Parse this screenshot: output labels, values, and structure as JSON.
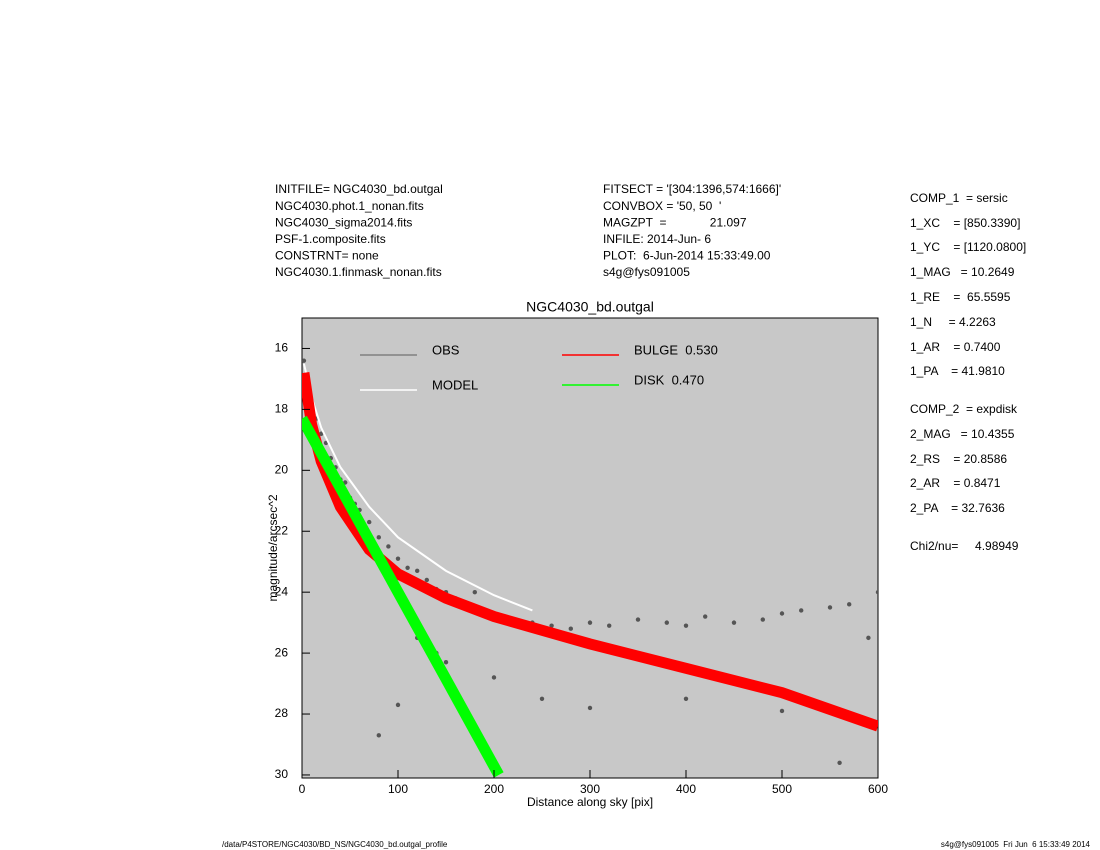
{
  "chart_data": {
    "type": "scatter",
    "title": "NGC4030_bd.outgal",
    "x_label": "Distance along sky [pix]",
    "y_label": "magnitude/arcsec^2",
    "xlim": [
      0,
      600
    ],
    "xticks": [
      0,
      100,
      200,
      300,
      400,
      500,
      600
    ],
    "ylim": [
      15,
      30.1
    ],
    "invert_y": true,
    "yticks": [
      16,
      18,
      20,
      22,
      24,
      26,
      28,
      30
    ],
    "background": "#c8c8c8",
    "series": [
      {
        "name": "OBS",
        "color": "#555555",
        "legend_color": "#808080",
        "mode": "points",
        "x": [
          2,
          5,
          8,
          12,
          15,
          20,
          25,
          30,
          35,
          40,
          45,
          50,
          55,
          60,
          70,
          80,
          90,
          100,
          110,
          120,
          130,
          140,
          150,
          160,
          180,
          200,
          220,
          240,
          260,
          280,
          300,
          320,
          350,
          380,
          400,
          420,
          450,
          480,
          500,
          520,
          550,
          570,
          590,
          600,
          120,
          150,
          200,
          250,
          300,
          400,
          500,
          560,
          80,
          100,
          140,
          180
        ],
        "values": [
          16.4,
          17.0,
          17.6,
          18.0,
          18.3,
          18.8,
          19.1,
          19.6,
          19.9,
          20.3,
          20.4,
          20.9,
          21.1,
          21.3,
          21.7,
          22.2,
          22.5,
          22.9,
          23.2,
          23.3,
          23.6,
          23.9,
          24.0,
          24.2,
          24.5,
          24.7,
          24.9,
          25.0,
          25.1,
          25.2,
          25.0,
          25.1,
          24.9,
          25.0,
          25.1,
          24.8,
          25.0,
          24.9,
          24.7,
          24.6,
          24.5,
          24.4,
          25.5,
          24.0,
          25.5,
          26.3,
          26.8,
          27.5,
          27.8,
          27.5,
          27.9,
          29.6,
          28.7,
          27.7,
          26.0,
          24.0
        ]
      },
      {
        "name": "MODEL",
        "color": "#ffffff",
        "mode": "line",
        "x": [
          2,
          10,
          20,
          40,
          70,
          100,
          150,
          200,
          240
        ],
        "values": [
          16.5,
          17.6,
          18.6,
          19.9,
          21.2,
          22.2,
          23.3,
          24.1,
          24.6
        ]
      },
      {
        "name": "BULGE  0.530",
        "color": "#ff0000",
        "mode": "band",
        "x": [
          2,
          10,
          20,
          40,
          70,
          100,
          150,
          200,
          300,
          400,
          500,
          600
        ],
        "values": [
          16.8,
          18.5,
          19.7,
          21.2,
          22.6,
          23.4,
          24.2,
          24.8,
          25.7,
          26.5,
          27.3,
          28.4
        ]
      },
      {
        "name": "DISK  0.470",
        "color": "#00ff00",
        "mode": "band",
        "x": [
          0,
          50,
          100,
          150,
          205
        ],
        "values": [
          18.3,
          21.15,
          24.0,
          26.85,
          30.0
        ]
      }
    ]
  },
  "header": {
    "left": [
      "INITFILE= NGC4030_bd.outgal",
      "NGC4030.phot.1_nonan.fits",
      "NGC4030_sigma2014.fits",
      "PSF-1.composite.fits",
      "CONSTRNT= none",
      "NGC4030.1.finmask_nonan.fits"
    ],
    "middle": [
      "FITSECT = '[304:1396,574:1666]'",
      "CONVBOX = '50, 50  '",
      "MAGZPT  =             21.097",
      "INFILE: 2014-Jun- 6",
      "PLOT:  6-Jun-2014 15:33:49.00",
      "s4g@fys091005"
    ],
    "right": [
      "COMP_1  = sersic",
      "1_XC    = [850.3390]",
      "1_YC    = [1120.0800]",
      "1_MAG   = 10.2649",
      "1_RE    =  65.5595",
      "1_N     = 4.2263",
      "1_AR    = 0.7400",
      "1_PA    = 41.9810",
      "COMP_2  = expdisk",
      "2_MAG   = 10.4355",
      "2_RS    = 20.8586",
      "2_AR    = 0.8471",
      "2_PA    = 32.7636",
      "Chi2/nu=     4.98949"
    ]
  },
  "footer": {
    "left": "/data/P4STORE/NGC4030/BD_NS/NGC4030_bd.outgal_profile",
    "right": "s4g@fys091005  Fri Jun  6 15:33:49 2014"
  }
}
